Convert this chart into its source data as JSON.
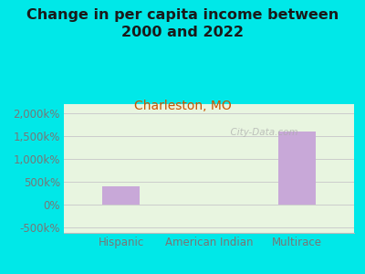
{
  "title": "Change in per capita income between\n2000 and 2022",
  "subtitle": "Charleston, MO",
  "categories": [
    "Hispanic",
    "American Indian",
    "Multirace"
  ],
  "values": [
    400,
    0,
    1600
  ],
  "bar_color": "#c8a8d8",
  "background_color": "#00e8e8",
  "plot_bg_top": "#e8f5e0",
  "plot_bg_bottom": "#f5fdf0",
  "title_fontsize": 11.5,
  "subtitle_fontsize": 10,
  "tick_label_fontsize": 8.5,
  "ylabel_ticks": [
    -500,
    0,
    500,
    1000,
    1500,
    2000
  ],
  "ylim": [
    -625,
    2200
  ],
  "watermark": "City-Data.com"
}
